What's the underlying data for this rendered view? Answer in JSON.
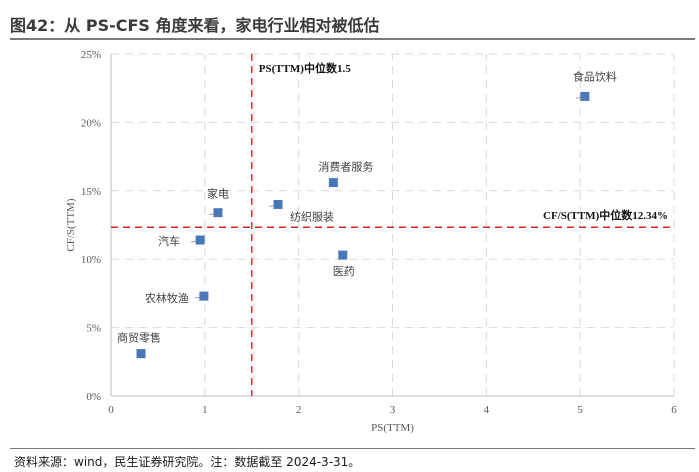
{
  "page": {
    "title": "图42：从 PS-CFS 角度来看，家电行业相对被低估",
    "footer": "资料来源：wind，民生证券研究院。注：数据截至 2024-3-31。"
  },
  "chart_data": {
    "type": "scatter",
    "title": "",
    "xlabel": "PS(TTM)",
    "ylabel": "CF/S(TTM)",
    "xlim": [
      0,
      6
    ],
    "ylim": [
      0,
      25
    ],
    "x_ticks": [
      "0",
      "1",
      "2",
      "3",
      "4",
      "5",
      "6"
    ],
    "y_ticks": [
      "0%",
      "5%",
      "10%",
      "15%",
      "20%",
      "25%"
    ],
    "grid": true,
    "points": [
      {
        "name": "商贸零售",
        "x": 0.32,
        "y": 3.1
      },
      {
        "name": "农林牧渔",
        "x": 0.99,
        "y": 7.3
      },
      {
        "name": "汽车",
        "x": 0.95,
        "y": 11.4
      },
      {
        "name": "家电",
        "x": 1.14,
        "y": 13.4
      },
      {
        "name": "纺织服装",
        "x": 1.78,
        "y": 14.0
      },
      {
        "name": "消费者服务",
        "x": 2.37,
        "y": 15.6
      },
      {
        "name": "医药",
        "x": 2.47,
        "y": 10.3
      },
      {
        "name": "食品饮料",
        "x": 5.05,
        "y": 21.9
      }
    ],
    "reference_lines": {
      "vertical": {
        "x": 1.5,
        "label": "PS(TTM)中位数1.5",
        "color": "#ee2c2c"
      },
      "horizontal": {
        "y": 12.34,
        "label": "CF/S(TTM)中位数12.34%",
        "color": "#d32626"
      }
    },
    "marker_color": "#4a77b8"
  }
}
